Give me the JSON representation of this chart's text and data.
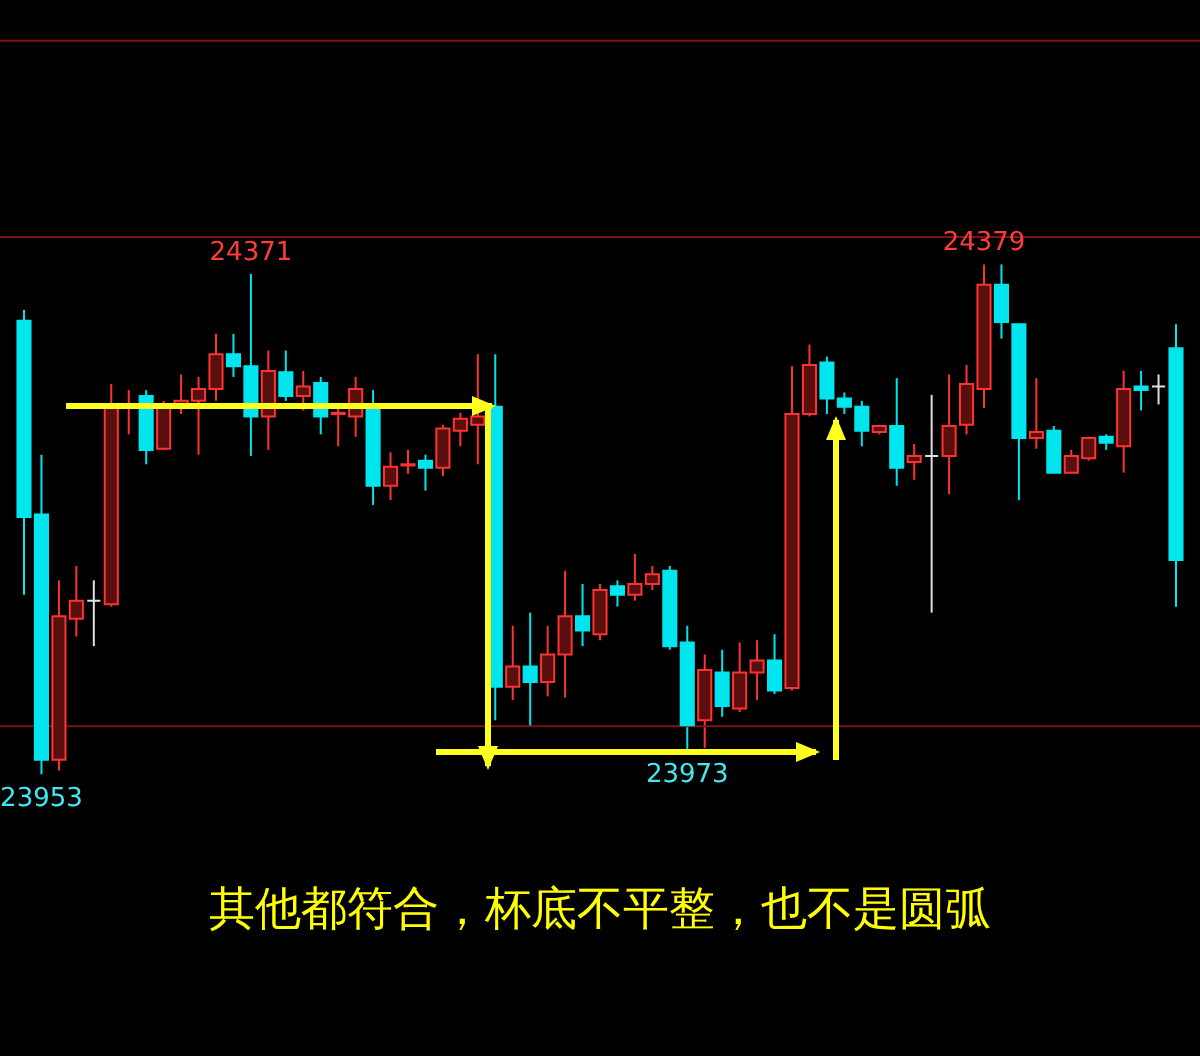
{
  "chart_data": {
    "type": "candlestick",
    "categories": [
      null,
      null,
      null,
      null,
      null,
      null,
      null,
      null,
      null,
      null,
      null,
      null,
      null,
      null,
      null,
      null,
      null,
      null,
      null,
      null,
      null,
      null,
      null,
      null,
      null,
      null,
      null,
      null,
      null,
      null,
      null,
      null,
      null,
      null,
      null,
      null,
      null,
      null,
      null,
      null,
      null,
      null,
      null,
      null,
      null,
      null,
      null,
      null,
      null,
      null,
      null,
      null,
      null,
      null,
      null,
      null,
      null,
      null,
      null,
      null,
      null,
      null,
      null,
      null,
      null,
      null,
      null
    ],
    "ohlc": [
      [
        24332,
        24341,
        24103,
        24168
      ],
      [
        24170,
        24220,
        23953,
        23965
      ],
      [
        23965,
        24115,
        23956,
        24085
      ],
      [
        24083,
        24127,
        24068,
        24098
      ],
      [
        24098,
        24115,
        24060,
        24098
      ],
      [
        24095,
        24279,
        24093,
        24259
      ],
      [
        24259,
        24274,
        24237,
        24262
      ],
      [
        24269,
        24274,
        24212,
        24224
      ],
      [
        24225,
        24265,
        24224,
        24262
      ],
      [
        24260,
        24287,
        24254,
        24265
      ],
      [
        24265,
        24285,
        24220,
        24275
      ],
      [
        24275,
        24321,
        24265,
        24304
      ],
      [
        24304,
        24321,
        24285,
        24294
      ],
      [
        24294,
        24371,
        24219,
        24252
      ],
      [
        24252,
        24307,
        24224,
        24290
      ],
      [
        24289,
        24307,
        24265,
        24269
      ],
      [
        24269,
        24290,
        24257,
        24277
      ],
      [
        24280,
        24285,
        24237,
        24252
      ],
      [
        24254,
        24262,
        24227,
        24255
      ],
      [
        24252,
        24285,
        24235,
        24275
      ],
      [
        24260,
        24274,
        24178,
        24194
      ],
      [
        24194,
        24222,
        24182,
        24210
      ],
      [
        24211,
        24224,
        24204,
        24212
      ],
      [
        24215,
        24220,
        24190,
        24209
      ],
      [
        24209,
        24245,
        24202,
        24242
      ],
      [
        24240,
        24255,
        24227,
        24250
      ],
      [
        24245,
        24304,
        24212,
        24252
      ],
      [
        24260,
        24304,
        23998,
        24026
      ],
      [
        24026,
        24077,
        24015,
        24043
      ],
      [
        24043,
        24088,
        23993,
        24030
      ],
      [
        24030,
        24077,
        24018,
        24053
      ],
      [
        24053,
        24123,
        24017,
        24085
      ],
      [
        24085,
        24112,
        24060,
        24073
      ],
      [
        24070,
        24112,
        24065,
        24107
      ],
      [
        24110,
        24115,
        24093,
        24103
      ],
      [
        24103,
        24137,
        24098,
        24112
      ],
      [
        24112,
        24127,
        24107,
        24120
      ],
      [
        24123,
        24127,
        24057,
        24060
      ],
      [
        24063,
        24077,
        23973,
        23994
      ],
      [
        23998,
        24053,
        23975,
        24040
      ],
      [
        24038,
        24057,
        24001,
        24010
      ],
      [
        24008,
        24063,
        24005,
        24038
      ],
      [
        24038,
        24065,
        24015,
        24048
      ],
      [
        24048,
        24070,
        24020,
        24023
      ],
      [
        24025,
        24294,
        24023,
        24254
      ],
      [
        24254,
        24312,
        24252,
        24295
      ],
      [
        24297,
        24302,
        24254,
        24267
      ],
      [
        24267,
        24272,
        24254,
        24260
      ],
      [
        24260,
        24265,
        24227,
        24240
      ],
      [
        24239,
        24245,
        24237,
        24244
      ],
      [
        24244,
        24284,
        24194,
        24209
      ],
      [
        24214,
        24229,
        24199,
        24219
      ],
      [
        24219,
        24270,
        24088,
        24219
      ],
      [
        24219,
        24287,
        24187,
        24244
      ],
      [
        24245,
        24295,
        24237,
        24279
      ],
      [
        24275,
        24379,
        24259,
        24362
      ],
      [
        24362,
        24379,
        24317,
        24331
      ],
      [
        24329,
        24329,
        24182,
        24234
      ],
      [
        24234,
        24284,
        24225,
        24239
      ],
      [
        24240,
        24244,
        24205,
        24205
      ],
      [
        24205,
        24224,
        24204,
        24219
      ],
      [
        24217,
        24235,
        24215,
        24234
      ],
      [
        24235,
        24237,
        24224,
        24230
      ],
      [
        24227,
        24290,
        24205,
        24275
      ],
      [
        24277,
        24290,
        24257,
        24274
      ],
      [
        24277,
        24287,
        24262,
        24277
      ],
      [
        24309,
        24329,
        24093,
        24132
      ]
    ],
    "colors": [
      "#00e5ee",
      "#00e5ee",
      "#ff3232",
      "#ff3232",
      "#e0e0e0",
      "#ff3232",
      "#ff3232",
      "#00e5ee",
      "#ff3232",
      "#ff3232",
      "#ff3232",
      "#ff3232",
      "#00e5ee",
      "#00e5ee",
      "#ff3232",
      "#00e5ee",
      "#ff3232",
      "#00e5ee",
      "#ff3232",
      "#ff3232",
      "#00e5ee",
      "#ff3232",
      "#ff3232",
      "#00e5ee",
      "#ff3232",
      "#ff3232",
      "#ff3232",
      "#00e5ee",
      "#ff3232",
      "#00e5ee",
      "#ff3232",
      "#ff3232",
      "#00e5ee",
      "#ff3232",
      "#00e5ee",
      "#ff3232",
      "#ff3232",
      "#00e5ee",
      "#00e5ee",
      "#ff3232",
      "#00e5ee",
      "#ff3232",
      "#ff3232",
      "#00e5ee",
      "#ff3232",
      "#ff3232",
      "#00e5ee",
      "#00e5ee",
      "#00e5ee",
      "#ff3232",
      "#00e5ee",
      "#ff3232",
      "#e0e0e0",
      "#ff3232",
      "#ff3232",
      "#ff3232",
      "#00e5ee",
      "#00e5ee",
      "#ff3232",
      "#00e5ee",
      "#ff3232",
      "#ff3232",
      "#00e5ee",
      "#ff3232",
      "#00e5ee",
      "#e0e0e0",
      "#00e5ee"
    ],
    "ylim": [
      23898,
      24600
    ],
    "tick_labels": false,
    "ref_lines": [
      {
        "axis": "y",
        "value": 24566,
        "color": "#7a1414"
      },
      {
        "axis": "y",
        "value": 24402,
        "color": "#7a1414"
      },
      {
        "axis": "y",
        "value": 23993,
        "color": "#7a1414"
      }
    ],
    "annotations": [
      {
        "text": "24371",
        "y": 24371
      },
      {
        "text": "24379",
        "y": 24379
      },
      {
        "text": "23973",
        "y": 23973
      },
      {
        "text": "23953",
        "y": 23953
      },
      "其他都符合，杯底不平整，也不是圆弧"
    ]
  }
}
